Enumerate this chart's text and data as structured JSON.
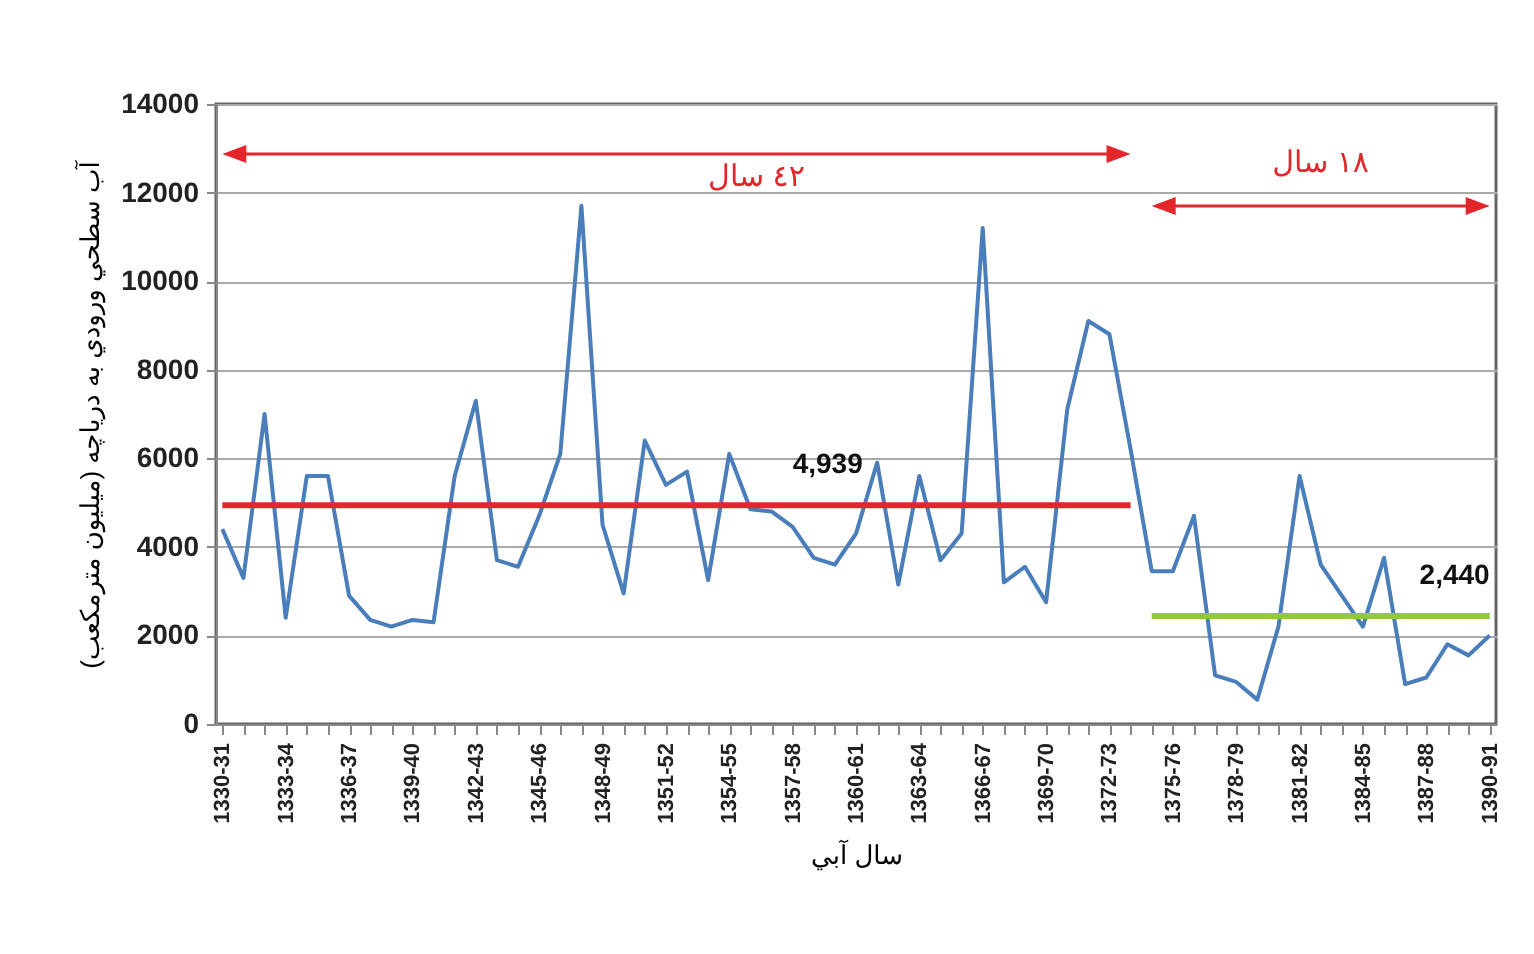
{
  "chart_data": {
    "type": "line",
    "xlabel": "سال آبي",
    "ylabel": "آب سطحي ورودي به درياچه (ميليون مترمكعب)",
    "categories": [
      "1330-31",
      null,
      null,
      "1333-34",
      null,
      null,
      "1336-37",
      null,
      null,
      "1339-40",
      null,
      null,
      "1342-43",
      null,
      null,
      "1345-46",
      null,
      null,
      "1348-49",
      null,
      null,
      "1351-52",
      null,
      null,
      "1354-55",
      null,
      null,
      "1357-58",
      null,
      null,
      "1360-61",
      null,
      null,
      "1363-64",
      null,
      null,
      "1366-67",
      null,
      null,
      "1369-70",
      null,
      null,
      "1372-73",
      null,
      null,
      "1375-76",
      null,
      null,
      "1378-79",
      null,
      null,
      "1381-82",
      null,
      null,
      "1384-85",
      null,
      null,
      "1387-88",
      null,
      null,
      "1390-91"
    ],
    "series": [
      {
        "color": "#4a7ebb",
        "values": [
          4400,
          3300,
          7000,
          2400,
          5600,
          5600,
          2900,
          2350,
          2200,
          2350,
          2300,
          5600,
          7300,
          3700,
          3550,
          4700,
          6100,
          11700,
          4500,
          2950,
          6400,
          5400,
          5700,
          3250,
          6100,
          4850,
          4800,
          4450,
          3750,
          3600,
          4300,
          5900,
          3150,
          5600,
          3700,
          4300,
          11200,
          3200,
          3550,
          2750,
          7100,
          9100,
          8800,
          6200,
          3450,
          3450,
          4700,
          1100,
          950,
          550,
          2200,
          5600,
          3600,
          2900,
          2200,
          3750,
          900,
          1050,
          1800,
          1550,
          2000
        ]
      },
      {
        "color": "#e3262b",
        "values": [
          4939,
          4939,
          4939,
          4939,
          4939,
          4939,
          4939,
          4939,
          4939,
          4939,
          4939,
          4939,
          4939,
          4939,
          4939,
          4939,
          4939,
          4939,
          4939,
          4939,
          4939,
          4939,
          4939,
          4939,
          4939,
          4939,
          4939,
          4939,
          4939,
          4939,
          4939,
          4939,
          4939,
          4939,
          4939,
          4939,
          4939,
          4939,
          4939,
          4939,
          4939,
          4939,
          4939,
          4939,
          null,
          null,
          null,
          null,
          null,
          null,
          null,
          null,
          null,
          null,
          null,
          null,
          null,
          null,
          null,
          null,
          null
        ]
      },
      {
        "color": "#92c83e",
        "values": [
          null,
          null,
          null,
          null,
          null,
          null,
          null,
          null,
          null,
          null,
          null,
          null,
          null,
          null,
          null,
          null,
          null,
          null,
          null,
          null,
          null,
          null,
          null,
          null,
          null,
          null,
          null,
          null,
          null,
          null,
          null,
          null,
          null,
          null,
          null,
          null,
          null,
          null,
          null,
          null,
          null,
          null,
          null,
          null,
          2440,
          2440,
          2440,
          2440,
          2440,
          2440,
          2440,
          2440,
          2440,
          2440,
          2440,
          2440,
          2440,
          2440,
          2440,
          2440,
          2440
        ]
      }
    ],
    "annotations": [
      "٤٢ سال",
      "١٨ سال",
      {
        "text": "4,939",
        "x": "1357-58",
        "y": 4939
      },
      {
        "text": "2,440",
        "x": "1390-91",
        "y": 2440
      }
    ],
    "ylim": [
      0,
      14000
    ],
    "yticks": [
      0,
      2000,
      4000,
      6000,
      8000,
      10000,
      12000,
      14000
    ],
    "grid": "y",
    "marker": "none",
    "line_style": "solid"
  }
}
